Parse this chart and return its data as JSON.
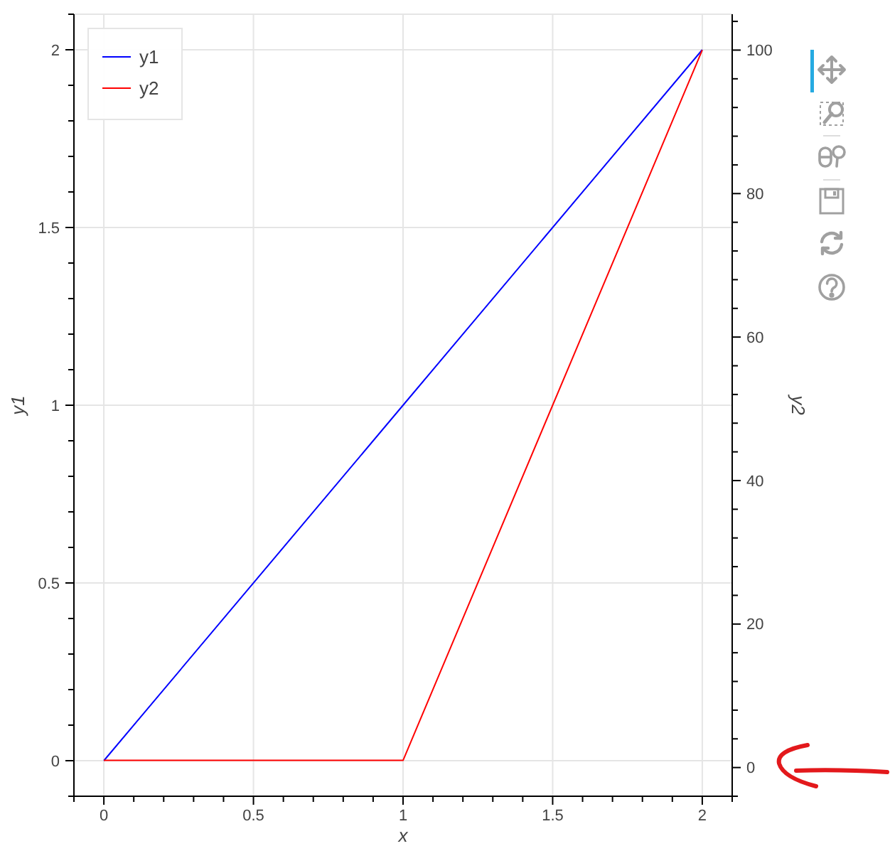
{
  "chart_data": {
    "type": "line",
    "xlabel": "x",
    "ylabel": "y1",
    "y2label": "y2",
    "x": [
      0,
      1,
      2
    ],
    "series": [
      {
        "name": "y1",
        "color": "#0000ff",
        "values": [
          0,
          1,
          2
        ]
      },
      {
        "name": "y2",
        "color": "#ff0000",
        "values": [
          1,
          1,
          100
        ],
        "axis": "y2"
      }
    ],
    "xlim": [
      -0.1,
      2.1
    ],
    "xticks": [
      {
        "value": -0.1,
        "label": null
      },
      0,
      {
        "value": 0.1,
        "label": null
      },
      {
        "value": 0.2,
        "label": null
      },
      {
        "value": 0.3,
        "label": null
      },
      {
        "value": 0.4,
        "label": null
      },
      0.5,
      {
        "value": 0.6,
        "label": null
      },
      {
        "value": 0.7,
        "label": null
      },
      {
        "value": 0.8,
        "label": null
      },
      {
        "value": 0.9,
        "label": null
      },
      1,
      {
        "value": 1.1,
        "label": null
      },
      {
        "value": 1.2,
        "label": null
      },
      {
        "value": 1.3,
        "label": null
      },
      {
        "value": 1.4,
        "label": null
      },
      1.5,
      {
        "value": 1.6,
        "label": null
      },
      {
        "value": 1.7,
        "label": null
      },
      {
        "value": 1.8,
        "label": null
      },
      {
        "value": 1.9,
        "label": null
      },
      2,
      {
        "value": 2.1,
        "label": null
      }
    ],
    "ylim": [
      -0.1,
      2.1
    ],
    "yticks": [
      {
        "value": -0.1,
        "label": null
      },
      0,
      {
        "value": 0.1,
        "label": null
      },
      {
        "value": 0.2,
        "label": null
      },
      {
        "value": 0.3,
        "label": null
      },
      {
        "value": 0.4,
        "label": null
      },
      0.5,
      {
        "value": 0.6,
        "label": null
      },
      {
        "value": 0.7,
        "label": null
      },
      {
        "value": 0.8,
        "label": null
      },
      {
        "value": 0.9,
        "label": null
      },
      1,
      {
        "value": 1.1,
        "label": null
      },
      {
        "value": 1.2,
        "label": null
      },
      {
        "value": 1.3,
        "label": null
      },
      {
        "value": 1.4,
        "label": null
      },
      1.5,
      {
        "value": 1.6,
        "label": null
      },
      {
        "value": 1.7,
        "label": null
      },
      {
        "value": 1.8,
        "label": null
      },
      {
        "value": 1.9,
        "label": null
      },
      2,
      {
        "value": 2.1,
        "label": null
      }
    ],
    "y2lim": [
      -4,
      105
    ],
    "y2ticks": [
      {
        "value": -4,
        "label": null
      },
      0,
      {
        "value": 4,
        "label": null
      },
      {
        "value": 8,
        "label": null
      },
      {
        "value": 12,
        "label": null
      },
      {
        "value": 16,
        "label": null
      },
      20,
      {
        "value": 24,
        "label": null
      },
      {
        "value": 28,
        "label": null
      },
      {
        "value": 32,
        "label": null
      },
      {
        "value": 36,
        "label": null
      },
      40,
      {
        "value": 44,
        "label": null
      },
      {
        "value": 48,
        "label": null
      },
      {
        "value": 52,
        "label": null
      },
      {
        "value": 56,
        "label": null
      },
      60,
      {
        "value": 64,
        "label": null
      },
      {
        "value": 68,
        "label": null
      },
      {
        "value": 72,
        "label": null
      },
      {
        "value": 76,
        "label": null
      },
      80,
      {
        "value": 84,
        "label": null
      },
      {
        "value": 88,
        "label": null
      },
      {
        "value": 92,
        "label": null
      },
      {
        "value": 96,
        "label": null
      },
      100,
      {
        "value": 104,
        "label": null
      }
    ],
    "grid": true,
    "legend": "top left"
  }
}
